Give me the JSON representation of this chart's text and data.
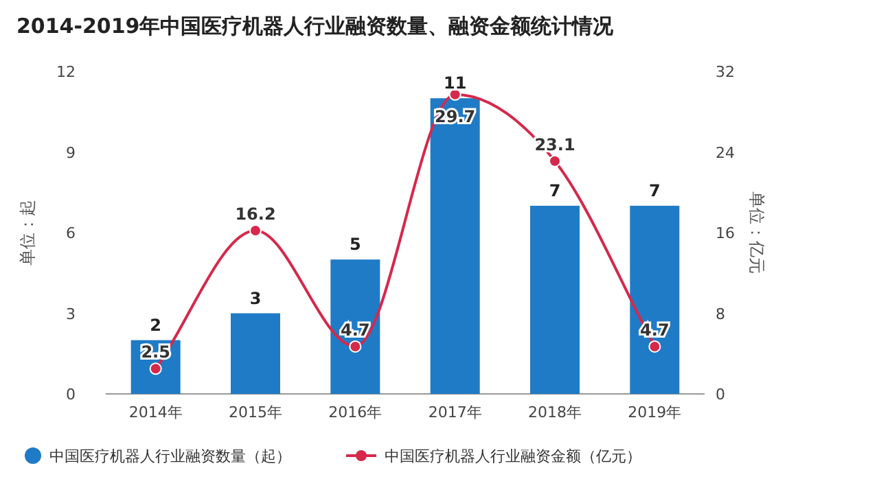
{
  "chart_data": {
    "type": "bar",
    "title": "2014-2019年中国医疗机器人行业融资数量、融资金额统计情况",
    "ylabel": "单位：起",
    "y2label": "单位：亿元",
    "categories": [
      "2014年",
      "2015年",
      "2016年",
      "2017年",
      "2018年",
      "2019年"
    ],
    "series": [
      {
        "name": "中国医疗机器人行业融资数量（起）",
        "color": "#1f7bc6",
        "values": [
          2,
          3,
          5,
          11,
          7,
          7
        ]
      },
      {
        "name": "中国医疗机器人行业融资金额（亿元）",
        "type": "line",
        "axis": "y2",
        "color": "#d6284b",
        "values": [
          2.5,
          16.2,
          4.7,
          29.7,
          23.1,
          4.7
        ]
      }
    ],
    "ylim": [
      0,
      12
    ],
    "yticks": [
      0,
      3,
      6,
      9,
      12
    ],
    "y2lim": [
      0,
      32
    ],
    "y2ticks": [
      0,
      8,
      16,
      24,
      32
    ],
    "data_labels": true,
    "legend": "bottom",
    "marker": "circle",
    "grid": false
  }
}
